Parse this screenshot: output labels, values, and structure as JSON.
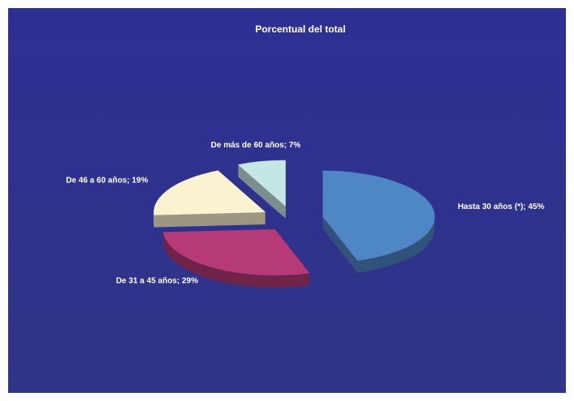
{
  "chart_data": {
    "type": "pie",
    "title": "Porcentual del total",
    "values": [
      45,
      29,
      19,
      7
    ],
    "value_labels": [
      "Hasta 30 años (*); 45%",
      "De 31 a 45 años; 29%",
      "De 46 a 60 años; 19%",
      "De más de 60 años; 7%"
    ],
    "colors": [
      "#4f86c6",
      "#b53a77",
      "#fbf3d0",
      "#c4e6e4"
    ]
  }
}
